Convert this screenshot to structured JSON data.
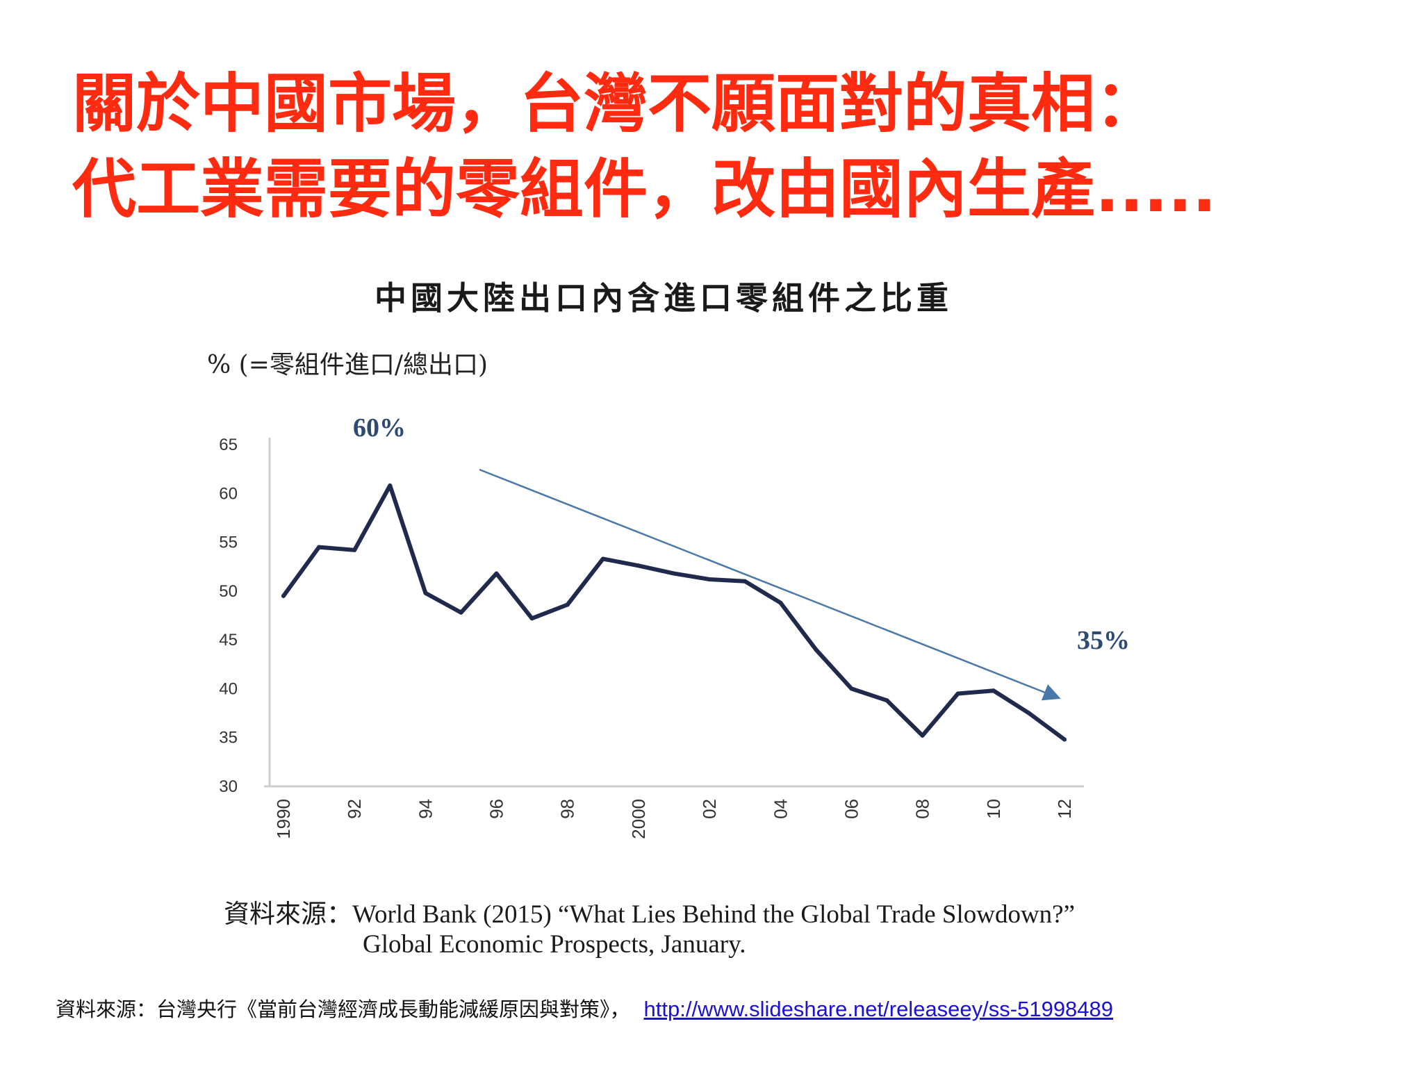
{
  "headline": {
    "line1": "關於中國市場，台灣不願面對的真相：",
    "line2": "代工業需要的零組件，改由國內生產....."
  },
  "chart_data": {
    "type": "line",
    "title": "中國大陸出口內含進口零組件之比重",
    "ylabel": "% (=零組件進口/總出口)",
    "xlabel": "",
    "categories": [
      "1990",
      "92",
      "94",
      "96",
      "98",
      "2000",
      "02",
      "04",
      "06",
      "08",
      "10",
      "12"
    ],
    "x": [
      1990,
      1991,
      1992,
      1993,
      1994,
      1995,
      1996,
      1997,
      1998,
      1999,
      2000,
      2001,
      2002,
      2003,
      2004,
      2005,
      2006,
      2007,
      2008,
      2009,
      2010,
      2011,
      2012
    ],
    "values": [
      49.5,
      54.5,
      54.2,
      60.8,
      49.8,
      47.8,
      51.8,
      47.2,
      48.6,
      53.3,
      52.6,
      51.8,
      51.2,
      51.0,
      48.8,
      44.0,
      40.0,
      38.8,
      35.2,
      39.5,
      39.8,
      37.5,
      34.8
    ],
    "yticks": [
      "65",
      "60",
      "55",
      "50",
      "45",
      "40",
      "35",
      "30"
    ],
    "ylim": [
      30,
      65
    ],
    "line_color": "#1f2a4c",
    "trend_color": "#4a78a8",
    "annotations": {
      "peak": "60%",
      "end": "35%"
    },
    "grid": false,
    "source": {
      "line1": "資料來源：World Bank (2015) “What Lies Behind the Global Trade Slowdown?”",
      "line2": "Global Economic Prospects, January."
    }
  },
  "footer": {
    "source_text": "資料來源：台灣央行《當前台灣經濟成長動能減緩原因與對策》，",
    "link": "http://www.slideshare.net/releaseey/ss-51998489"
  }
}
